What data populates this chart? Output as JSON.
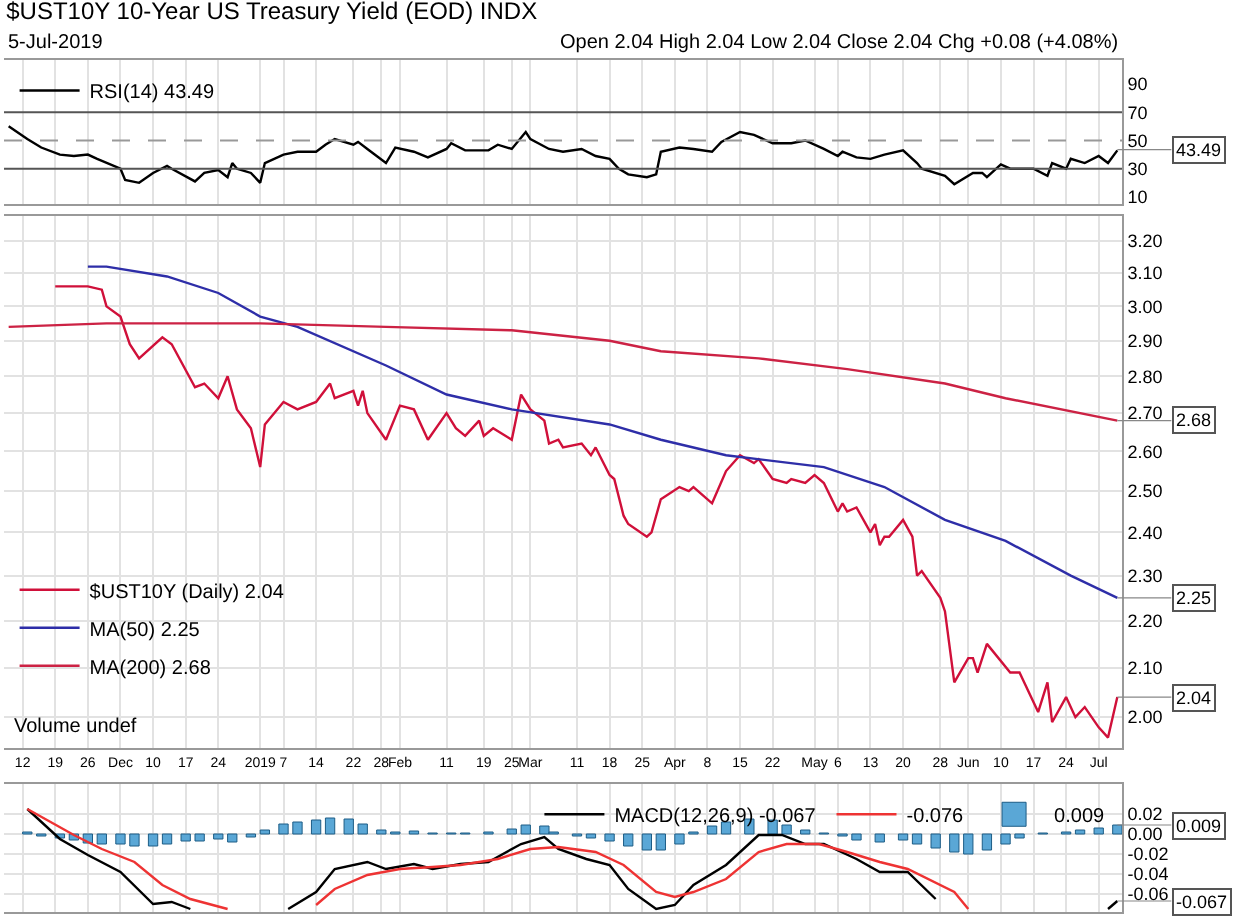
{
  "chart_data": [
    {
      "type": "line",
      "title": "$UST10Y 10-Year US Treasury Yield (EOD) INDX",
      "subtitle": "5-Jul-2019",
      "annotations": [
        "Open 2.04 High 2.04 Low 2.04 Close 2.04 Chg +0.08 (+4.08%)",
        {
          "text": "43.49",
          "x": "2019-07-05",
          "y": 43.49
        }
      ],
      "series": [
        {
          "name": "RSI(14) 43.49",
          "color": "#000000",
          "x": [
            "2018-11-09",
            "2018-11-13",
            "2018-11-16",
            "2018-11-20",
            "2018-11-23",
            "2018-11-26",
            "2018-11-28",
            "2018-12-03",
            "2018-12-04",
            "2018-12-07",
            "2018-12-10",
            "2018-12-13",
            "2018-12-14",
            "2018-12-19",
            "2018-12-21",
            "2018-12-24",
            "2018-12-26",
            "2018-12-27",
            "2018-12-28",
            "2018-12-31",
            "2019-01-02",
            "2019-01-03",
            "2019-01-07",
            "2019-01-10",
            "2019-01-14",
            "2019-01-16",
            "2019-01-18",
            "2019-01-22",
            "2019-01-23",
            "2019-01-25",
            "2019-01-29",
            "2019-01-31",
            "2019-02-04",
            "2019-02-07",
            "2019-02-11",
            "2019-02-12",
            "2019-02-15",
            "2019-02-20",
            "2019-02-22",
            "2019-02-25",
            "2019-02-28",
            "2019-03-01",
            "2019-03-05",
            "2019-03-08",
            "2019-03-12",
            "2019-03-15",
            "2019-03-18",
            "2019-03-20",
            "2019-03-22",
            "2019-03-26",
            "2019-03-28",
            "2019-03-29",
            "2019-04-02",
            "2019-04-05",
            "2019-04-09",
            "2019-04-11",
            "2019-04-15",
            "2019-04-18",
            "2019-04-22",
            "2019-04-26",
            "2019-04-29",
            "2019-05-03",
            "2019-05-06",
            "2019-05-07",
            "2019-05-10",
            "2019-05-13",
            "2019-05-16",
            "2019-05-20",
            "2019-05-23",
            "2019-05-24",
            "2019-05-29",
            "2019-05-31",
            "2019-06-04",
            "2019-06-06",
            "2019-06-07",
            "2019-06-10",
            "2019-06-12",
            "2019-06-17",
            "2019-06-20",
            "2019-06-21",
            "2019-06-24",
            "2019-06-25",
            "2019-06-28",
            "2019-07-01",
            "2019-07-03",
            "2019-07-05"
          ],
          "values": [
            60,
            51,
            45,
            40,
            39,
            40,
            37,
            30,
            22,
            20,
            27,
            32,
            30,
            21,
            27,
            29,
            24,
            34,
            30,
            27,
            20,
            34,
            40,
            42,
            42,
            47,
            51,
            47,
            49,
            44,
            34,
            45,
            42,
            38,
            44,
            48,
            43,
            43,
            47,
            44,
            56,
            51,
            44,
            42,
            44,
            39,
            37,
            30,
            26,
            24,
            26,
            42,
            45,
            44,
            42,
            49,
            56,
            54,
            48,
            48,
            50,
            44,
            39,
            42,
            38,
            37,
            40,
            43,
            34,
            30,
            25,
            19,
            27,
            27,
            24,
            33,
            30,
            30,
            25,
            34,
            30,
            37,
            34,
            39,
            34,
            43
          ]
        }
      ],
      "ref_lines": [
        {
          "axis": "y",
          "value": 70,
          "color": "#555555",
          "line_style": "solid"
        },
        {
          "axis": "y",
          "value": 50,
          "color": "#999999",
          "line_style": "dashed"
        },
        {
          "axis": "y",
          "value": 30,
          "color": "#555555",
          "line_style": "solid"
        }
      ],
      "xlim": [
        "2018-11-08",
        "2019-07-06"
      ],
      "xticks": [
        {
          "value": "2018-11-12",
          "label": null
        },
        {
          "value": "2018-11-19",
          "label": null
        },
        {
          "value": "2018-11-26",
          "label": null
        },
        {
          "value": "2018-12-03",
          "label": null
        },
        {
          "value": "2018-12-10",
          "label": null
        },
        {
          "value": "2018-12-17",
          "label": null
        },
        {
          "value": "2018-12-24",
          "label": null
        },
        {
          "value": "2019-01-02",
          "label": null
        },
        {
          "value": "2019-01-07",
          "label": null
        },
        {
          "value": "2019-01-14",
          "label": null
        },
        {
          "value": "2019-01-22",
          "label": null
        },
        {
          "value": "2019-01-28",
          "label": null
        },
        {
          "value": "2019-02-01",
          "label": null
        },
        {
          "value": "2019-02-11",
          "label": null
        },
        {
          "value": "2019-02-19",
          "label": null
        },
        {
          "value": "2019-02-25",
          "label": null
        },
        {
          "value": "2019-03-01",
          "label": null
        },
        {
          "value": "2019-03-11",
          "label": null
        },
        {
          "value": "2019-03-18",
          "label": null
        },
        {
          "value": "2019-03-25",
          "label": null
        },
        {
          "value": "2019-04-01",
          "label": null
        },
        {
          "value": "2019-04-08",
          "label": null
        },
        {
          "value": "2019-04-15",
          "label": null
        },
        {
          "value": "2019-04-22",
          "label": null
        },
        {
          "value": "2019-05-01",
          "label": null
        },
        {
          "value": "2019-05-06",
          "label": null
        },
        {
          "value": "2019-05-13",
          "label": null
        },
        {
          "value": "2019-05-20",
          "label": null
        },
        {
          "value": "2019-05-28",
          "label": null
        },
        {
          "value": "2019-06-03",
          "label": null
        },
        {
          "value": "2019-06-10",
          "label": null
        },
        {
          "value": "2019-06-17",
          "label": null
        },
        {
          "value": "2019-06-24",
          "label": null
        },
        {
          "value": "2019-07-01",
          "label": null
        }
      ],
      "ylim": [
        5,
        107
      ],
      "yticks": [
        10,
        30,
        50,
        70,
        90
      ],
      "grid": "x",
      "legend": "top left",
      "tick_labels": "y"
    },
    {
      "type": "line",
      "log": true,
      "annotations": [
        "Volume undef",
        {
          "text": "2.68",
          "x": "2019-07-05",
          "y": 2.68
        },
        {
          "text": "2.25",
          "x": "2019-07-05",
          "y": 2.25
        },
        {
          "text": "2.04",
          "x": "2019-07-05",
          "y": 2.04
        }
      ],
      "series": [
        {
          "name": "$UST10Y (Daily) 2.04",
          "color": "#d0103a",
          "x": [
            "2018-11-19",
            "2018-11-23",
            "2018-11-26",
            "2018-11-29",
            "2018-11-30",
            "2018-12-03",
            "2018-12-05",
            "2018-12-07",
            "2018-12-12",
            "2018-12-14",
            "2018-12-19",
            "2018-12-21",
            "2018-12-24",
            "2018-12-26",
            "2018-12-28",
            "2018-12-31",
            "2019-01-02",
            "2019-01-03",
            "2019-01-07",
            "2019-01-10",
            "2019-01-14",
            "2019-01-17",
            "2019-01-18",
            "2019-01-22",
            "2019-01-23",
            "2019-01-24",
            "2019-01-25",
            "2019-01-29",
            "2019-02-01",
            "2019-02-04",
            "2019-02-07",
            "2019-02-11",
            "2019-02-13",
            "2019-02-15",
            "2019-02-18",
            "2019-02-19",
            "2019-02-21",
            "2019-02-25",
            "2019-02-27",
            "2019-03-01",
            "2019-03-04",
            "2019-03-05",
            "2019-03-07",
            "2019-03-08",
            "2019-03-12",
            "2019-03-14",
            "2019-03-15",
            "2019-03-18",
            "2019-03-19",
            "2019-03-21",
            "2019-03-22",
            "2019-03-26",
            "2019-03-27",
            "2019-03-29",
            "2019-04-02",
            "2019-04-04",
            "2019-04-05",
            "2019-04-09",
            "2019-04-12",
            "2019-04-15",
            "2019-04-18",
            "2019-04-19",
            "2019-04-22",
            "2019-04-25",
            "2019-04-26",
            "2019-04-29",
            "2019-05-01",
            "2019-05-03",
            "2019-05-06",
            "2019-05-07",
            "2019-05-08",
            "2019-05-10",
            "2019-05-13",
            "2019-05-14",
            "2019-05-15",
            "2019-05-16",
            "2019-05-17",
            "2019-05-20",
            "2019-05-22",
            "2019-05-23",
            "2019-05-24",
            "2019-05-28",
            "2019-05-29",
            "2019-05-31",
            "2019-06-03",
            "2019-06-04",
            "2019-06-05",
            "2019-06-07",
            "2019-06-12",
            "2019-06-14",
            "2019-06-18",
            "2019-06-20",
            "2019-06-21",
            "2019-06-24",
            "2019-06-26",
            "2019-06-28",
            "2019-07-01",
            "2019-07-03",
            "2019-07-05"
          ],
          "values": [
            3.06,
            3.06,
            3.06,
            3.05,
            3.0,
            2.97,
            2.89,
            2.85,
            2.91,
            2.89,
            2.77,
            2.78,
            2.74,
            2.8,
            2.71,
            2.66,
            2.56,
            2.67,
            2.73,
            2.71,
            2.73,
            2.78,
            2.74,
            2.76,
            2.72,
            2.76,
            2.7,
            2.63,
            2.72,
            2.71,
            2.63,
            2.7,
            2.66,
            2.64,
            2.68,
            2.64,
            2.66,
            2.63,
            2.75,
            2.71,
            2.68,
            2.62,
            2.63,
            2.61,
            2.62,
            2.59,
            2.61,
            2.54,
            2.53,
            2.44,
            2.42,
            2.39,
            2.4,
            2.48,
            2.51,
            2.5,
            2.51,
            2.47,
            2.55,
            2.59,
            2.57,
            2.58,
            2.53,
            2.52,
            2.53,
            2.52,
            2.54,
            2.52,
            2.45,
            2.47,
            2.45,
            2.46,
            2.4,
            2.42,
            2.37,
            2.39,
            2.39,
            2.43,
            2.39,
            2.3,
            2.31,
            2.25,
            2.22,
            2.07,
            2.12,
            2.12,
            2.09,
            2.15,
            2.09,
            2.09,
            2.01,
            2.07,
            1.99,
            2.04,
            2.0,
            2.02,
            1.98,
            1.96,
            2.04
          ]
        },
        {
          "name": "MA(50) 2.25",
          "color": "#2e2ea8",
          "x": [
            "2018-11-26",
            "2018-11-30",
            "2018-12-13",
            "2018-12-24",
            "2019-01-02",
            "2019-01-10",
            "2019-01-29",
            "2019-02-11",
            "2019-02-25",
            "2019-03-18",
            "2019-03-29",
            "2019-04-12",
            "2019-05-03",
            "2019-05-16",
            "2019-05-29",
            "2019-06-11",
            "2019-06-25",
            "2019-07-05"
          ],
          "values": [
            3.12,
            3.12,
            3.09,
            3.04,
            2.97,
            2.94,
            2.83,
            2.75,
            2.71,
            2.67,
            2.63,
            2.59,
            2.56,
            2.51,
            2.43,
            2.38,
            2.3,
            2.25
          ]
        },
        {
          "name": "MA(200) 2.68",
          "color": "#cc2244",
          "x": [
            "2018-11-09",
            "2018-11-30",
            "2019-01-02",
            "2019-01-29",
            "2019-02-25",
            "2019-03-18",
            "2019-03-29",
            "2019-04-19",
            "2019-05-08",
            "2019-05-29",
            "2019-06-11",
            "2019-07-05"
          ],
          "values": [
            2.94,
            2.95,
            2.95,
            2.94,
            2.93,
            2.9,
            2.87,
            2.85,
            2.82,
            2.78,
            2.74,
            2.68
          ]
        }
      ],
      "xlim": [
        "2018-11-08",
        "2019-07-06"
      ],
      "xticks": [
        {
          "value": "2018-11-12",
          "label": "12"
        },
        {
          "value": "2018-11-19",
          "label": "19"
        },
        {
          "value": "2018-11-26",
          "label": "26"
        },
        {
          "value": "2018-12-03",
          "label": "Dec"
        },
        {
          "value": "2018-12-10",
          "label": "10"
        },
        {
          "value": "2018-12-17",
          "label": "17"
        },
        {
          "value": "2018-12-24",
          "label": "24"
        },
        {
          "value": "2019-01-02",
          "label": "2019"
        },
        {
          "value": "2019-01-07",
          "label": "7"
        },
        {
          "value": "2019-01-14",
          "label": "14"
        },
        {
          "value": "2019-01-22",
          "label": "22"
        },
        {
          "value": "2019-01-28",
          "label": "28"
        },
        {
          "value": "2019-02-01",
          "label": "Feb"
        },
        {
          "value": "2019-02-11",
          "label": "11"
        },
        {
          "value": "2019-02-19",
          "label": "19"
        },
        {
          "value": "2019-02-25",
          "label": "25"
        },
        {
          "value": "2019-03-01",
          "label": "Mar"
        },
        {
          "value": "2019-03-11",
          "label": "11"
        },
        {
          "value": "2019-03-18",
          "label": "18"
        },
        {
          "value": "2019-03-25",
          "label": "25"
        },
        {
          "value": "2019-04-01",
          "label": "Apr"
        },
        {
          "value": "2019-04-08",
          "label": "8"
        },
        {
          "value": "2019-04-15",
          "label": "15"
        },
        {
          "value": "2019-04-22",
          "label": "22"
        },
        {
          "value": "2019-05-01",
          "label": "May"
        },
        {
          "value": "2019-05-06",
          "label": "6"
        },
        {
          "value": "2019-05-13",
          "label": "13"
        },
        {
          "value": "2019-05-20",
          "label": "20"
        },
        {
          "value": "2019-05-28",
          "label": "28"
        },
        {
          "value": "2019-06-03",
          "label": "Jun"
        },
        {
          "value": "2019-06-10",
          "label": "10"
        },
        {
          "value": "2019-06-17",
          "label": "17"
        },
        {
          "value": "2019-06-24",
          "label": "24"
        },
        {
          "value": "2019-07-01",
          "label": "Jul"
        }
      ],
      "ylim": [
        1.94,
        3.28
      ],
      "yticks": [
        {
          "value": 2.0,
          "label": "2.00"
        },
        {
          "value": 2.1,
          "label": "2.10"
        },
        {
          "value": 2.2,
          "label": "2.20"
        },
        {
          "value": 2.3,
          "label": "2.30"
        },
        {
          "value": 2.4,
          "label": "2.40"
        },
        {
          "value": 2.5,
          "label": "2.50"
        },
        {
          "value": 2.6,
          "label": "2.60"
        },
        {
          "value": 2.7,
          "label": "2.70"
        },
        {
          "value": 2.8,
          "label": "2.80"
        },
        {
          "value": 2.9,
          "label": "2.90"
        },
        {
          "value": 3.0,
          "label": "3.00"
        },
        {
          "value": 3.1,
          "label": "3.10"
        },
        {
          "value": 3.2,
          "label": "3.20"
        }
      ],
      "grid": true,
      "legend": "bottom left"
    },
    {
      "type": "line",
      "annotations": [
        {
          "text": "0.009",
          "x": "2019-07-05",
          "y": 0.009
        },
        {
          "text": "-0.067",
          "x": "2019-07-05",
          "y": -0.067
        }
      ],
      "series": [
        {
          "name": "MACD(12,26,9) -0.067",
          "color": "#000000",
          "x": [
            "2018-11-13",
            "2018-11-20",
            "2018-11-26",
            "2018-12-03",
            "2018-12-10",
            "2018-12-14",
            "2018-12-18",
            "2018-12-21",
            "2019-01-08",
            "2019-01-14",
            "2019-01-18",
            "2019-01-25",
            "2019-01-29",
            "2019-02-04",
            "2019-02-08",
            "2019-02-14",
            "2019-02-20",
            "2019-02-27",
            "2019-03-04",
            "2019-03-07",
            "2019-03-13",
            "2019-03-18",
            "2019-03-22",
            "2019-03-28",
            "2019-04-01",
            "2019-04-05",
            "2019-04-12",
            "2019-04-19",
            "2019-04-24",
            "2019-04-29",
            "2019-05-03",
            "2019-05-10",
            "2019-05-15",
            "2019-05-21",
            "2019-05-27",
            "2019-05-31",
            "2019-07-03",
            "2019-07-05"
          ],
          "values": [
            0.025,
            -0.005,
            -0.021,
            -0.038,
            -0.07,
            -0.068,
            -0.075,
            null,
            -0.075,
            -0.058,
            -0.035,
            -0.028,
            -0.035,
            -0.03,
            -0.035,
            -0.03,
            -0.028,
            -0.01,
            -0.003,
            -0.015,
            -0.025,
            -0.031,
            -0.055,
            -0.075,
            -0.071,
            -0.051,
            -0.031,
            -0.001,
            -0.001,
            -0.01,
            -0.01,
            -0.025,
            -0.038,
            -0.038,
            -0.065,
            null,
            -0.075,
            -0.067
          ]
        },
        {
          "name": "-0.076",
          "color": "#ee3333",
          "x": [
            "2018-11-13",
            "2018-11-23",
            "2018-11-29",
            "2018-12-06",
            "2018-12-12",
            "2018-12-18",
            "2018-12-26",
            "2018-12-31",
            "2019-01-14",
            "2019-01-18",
            "2019-01-25",
            "2019-02-01",
            "2019-02-08",
            "2019-02-14",
            "2019-02-22",
            "2019-03-01",
            "2019-03-07",
            "2019-03-15",
            "2019-03-21",
            "2019-03-28",
            "2019-04-01",
            "2019-04-05",
            "2019-04-12",
            "2019-04-19",
            "2019-04-25",
            "2019-05-02",
            "2019-05-08",
            "2019-05-15",
            "2019-05-21",
            "2019-05-31",
            "2019-06-03"
          ],
          "values": [
            0.025,
            -0.001,
            -0.015,
            -0.028,
            -0.051,
            -0.065,
            -0.075,
            null,
            -0.071,
            -0.055,
            -0.041,
            -0.035,
            -0.033,
            -0.031,
            -0.025,
            -0.015,
            -0.013,
            -0.018,
            -0.031,
            -0.058,
            -0.063,
            -0.058,
            -0.045,
            -0.018,
            -0.01,
            -0.01,
            -0.018,
            -0.028,
            -0.035,
            -0.058,
            -0.075
          ]
        },
        {
          "name": "0.009",
          "type": "bar",
          "color": "#5aa7d6",
          "x": [
            "2018-11-13",
            "2018-11-16",
            "2018-11-20",
            "2018-11-23",
            "2018-11-26",
            "2018-11-29",
            "2018-12-03",
            "2018-12-06",
            "2018-12-10",
            "2018-12-13",
            "2018-12-17",
            "2018-12-20",
            "2018-12-24",
            "2018-12-27",
            "2018-12-31",
            "2019-01-03",
            "2019-01-07",
            "2019-01-10",
            "2019-01-14",
            "2019-01-17",
            "2019-01-21",
            "2019-01-24",
            "2019-01-28",
            "2019-01-31",
            "2019-02-04",
            "2019-02-08",
            "2019-02-12",
            "2019-02-15",
            "2019-02-20",
            "2019-02-25",
            "2019-02-28",
            "2019-03-04",
            "2019-03-06",
            "2019-03-11",
            "2019-03-14",
            "2019-03-18",
            "2019-03-22",
            "2019-03-26",
            "2019-03-29",
            "2019-04-02",
            "2019-04-05",
            "2019-04-09",
            "2019-04-12",
            "2019-04-17",
            "2019-04-22",
            "2019-04-25",
            "2019-04-29",
            "2019-05-03",
            "2019-05-07",
            "2019-05-10",
            "2019-05-15",
            "2019-05-20",
            "2019-05-23",
            "2019-05-27",
            "2019-05-31",
            "2019-06-03",
            "2019-06-07",
            "2019-06-11",
            "2019-06-14",
            "2019-06-19",
            "2019-06-24",
            "2019-06-27",
            "2019-07-01",
            "2019-07-05"
          ],
          "values": [
            0.002,
            -0.002,
            -0.004,
            -0.006,
            -0.009,
            -0.01,
            -0.01,
            -0.012,
            -0.012,
            -0.01,
            -0.007,
            -0.007,
            -0.005,
            -0.008,
            -0.003,
            0.004,
            0.01,
            0.012,
            0.014,
            0.016,
            0.015,
            0.01,
            0.004,
            0.002,
            0.003,
            0.001,
            0.001,
            0.001,
            0.002,
            0.005,
            0.009,
            0.008,
            0.002,
            -0.002,
            -0.004,
            -0.007,
            -0.012,
            -0.016,
            -0.016,
            -0.01,
            0.002,
            0.008,
            0.012,
            0.015,
            0.014,
            0.009,
            0.004,
            0.001,
            -0.002,
            -0.006,
            -0.008,
            -0.006,
            -0.01,
            -0.014,
            -0.018,
            -0.02,
            -0.016,
            -0.01,
            -0.004,
            0.001,
            0.002,
            0.004,
            0.006,
            0.009
          ]
        }
      ],
      "xlim": [
        "2018-11-08",
        "2019-07-06"
      ],
      "xticks": [
        {
          "value": "2018-11-12",
          "label": null
        },
        {
          "value": "2018-11-19",
          "label": null
        },
        {
          "value": "2018-11-26",
          "label": null
        },
        {
          "value": "2018-12-03",
          "label": null
        },
        {
          "value": "2018-12-10",
          "label": null
        },
        {
          "value": "2018-12-17",
          "label": null
        },
        {
          "value": "2018-12-24",
          "label": null
        },
        {
          "value": "2019-01-02",
          "label": null
        },
        {
          "value": "2019-01-07",
          "label": null
        },
        {
          "value": "2019-01-14",
          "label": null
        },
        {
          "value": "2019-01-22",
          "label": null
        },
        {
          "value": "2019-01-28",
          "label": null
        },
        {
          "value": "2019-02-01",
          "label": null
        },
        {
          "value": "2019-02-11",
          "label": null
        },
        {
          "value": "2019-02-19",
          "label": null
        },
        {
          "value": "2019-02-25",
          "label": null
        },
        {
          "value": "2019-03-01",
          "label": null
        },
        {
          "value": "2019-03-11",
          "label": null
        },
        {
          "value": "2019-03-18",
          "label": null
        },
        {
          "value": "2019-03-25",
          "label": null
        },
        {
          "value": "2019-04-01",
          "label": null
        },
        {
          "value": "2019-04-08",
          "label": null
        },
        {
          "value": "2019-04-15",
          "label": null
        },
        {
          "value": "2019-04-22",
          "label": null
        },
        {
          "value": "2019-05-01",
          "label": null
        },
        {
          "value": "2019-05-06",
          "label": null
        },
        {
          "value": "2019-05-13",
          "label": null
        },
        {
          "value": "2019-05-20",
          "label": null
        },
        {
          "value": "2019-05-28",
          "label": null
        },
        {
          "value": "2019-06-03",
          "label": null
        },
        {
          "value": "2019-06-10",
          "label": null
        },
        {
          "value": "2019-06-17",
          "label": null
        },
        {
          "value": "2019-06-24",
          "label": null
        },
        {
          "value": "2019-07-01",
          "label": null
        }
      ],
      "ylim": [
        -0.078,
        0.05
      ],
      "yticks": [
        0.02,
        {
          "value": 0,
          "label": "0.00"
        },
        -0.02,
        -0.04,
        -0.06
      ],
      "grid": true,
      "legend": "top right",
      "tick_labels": "y"
    }
  ]
}
